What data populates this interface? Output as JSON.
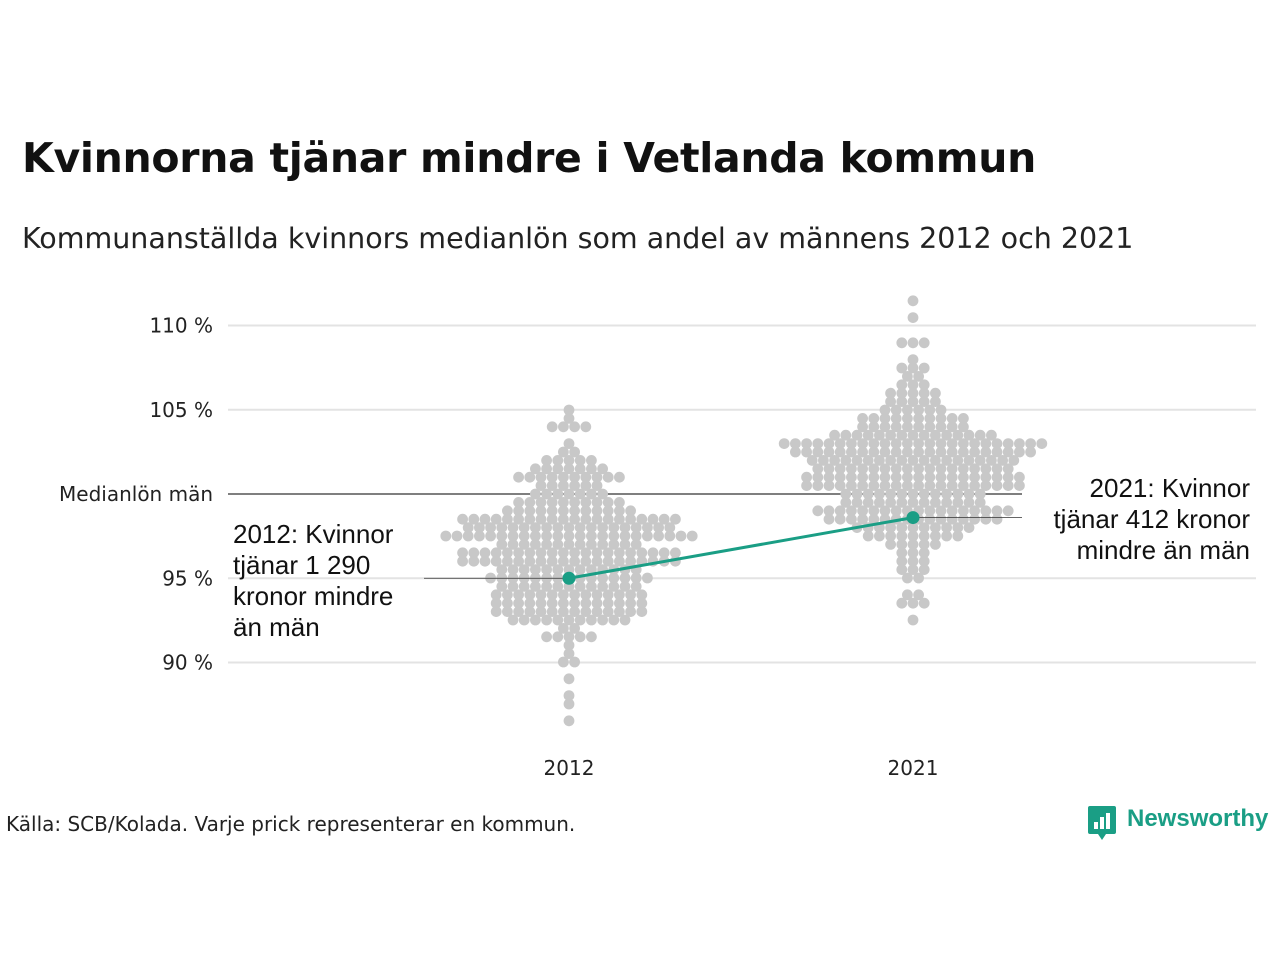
{
  "title": "Kvinnorna tjänar mindre i Vetlanda kommun",
  "subtitle": "Kommunanställda kvinnors medianlön som andel av männens 2012 och 2021",
  "source": "Källa: SCB/Kolada. Varje prick representerar en kommun.",
  "brand": {
    "name": "Newsworthy",
    "icon": "chart-bubble-icon",
    "color": "#1a9e85"
  },
  "annotations": {
    "left": [
      "2012: Kvinnor",
      "tjänar 1 290",
      "kronor mindre",
      "än män"
    ],
    "right": [
      "2021: Kvinnor",
      "tjänar 412 kronor",
      "mindre än män"
    ]
  },
  "colors": {
    "dots": "#c8c8c8",
    "highlight": "#1a9e85",
    "reference": "#333333",
    "grid": "#e3e3e3"
  },
  "chart_data": {
    "type": "scatter",
    "subtype": "beeswarm",
    "categories": [
      "2012",
      "2021"
    ],
    "y_ticks": [
      {
        "value": 90,
        "label": "90 %"
      },
      {
        "value": 95,
        "label": "95 %"
      },
      {
        "value": 100,
        "label": "Medianlön män"
      },
      {
        "value": 105,
        "label": "105 %"
      },
      {
        "value": 110,
        "label": "110 %"
      }
    ],
    "ylim": [
      86,
      111.5
    ],
    "reference_line": {
      "value": 100,
      "label": "Medianlön män"
    },
    "highlight": {
      "x": [
        "2012",
        "2021"
      ],
      "values": [
        95.0,
        98.6
      ]
    },
    "distributions": [
      {
        "category": "2012",
        "count": 290,
        "min": 86.5,
        "max": 105.2,
        "median": 96.6,
        "spread": 3.0,
        "outliers": [
          86.5,
          89.0,
          103.8,
          104.6,
          105.2
        ]
      },
      {
        "category": "2021",
        "count": 290,
        "min": 92.5,
        "max": 111.3,
        "median": 101.3,
        "spread": 2.7,
        "outliers": [
          92.5,
          93.3,
          94.0,
          109.2,
          110.5,
          111.3
        ]
      }
    ]
  }
}
